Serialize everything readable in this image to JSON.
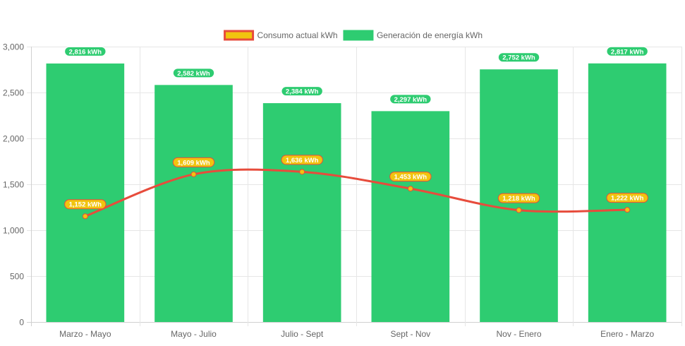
{
  "chart_data": {
    "type": "bar",
    "categories": [
      "Marzo - Mayo",
      "Mayo - Julio",
      "Julio - Sept",
      "Sept - Nov",
      "Nov - Enero",
      "Enero - Marzo"
    ],
    "series": [
      {
        "name": "Generación de energía kWh",
        "type": "bar",
        "color": "#2ecc71",
        "values": [
          2816,
          2582,
          2384,
          2297,
          2752,
          2817
        ],
        "labels": [
          "2,816 kWh",
          "2,582 kWh",
          "2,384 kWh",
          "2,297 kWh",
          "2,752 kWh",
          "2,817 kWh"
        ]
      },
      {
        "name": "Consumo actual kWh",
        "type": "line",
        "color": "#e74c3c",
        "fill_color": "#f1c40f",
        "values": [
          1152,
          1609,
          1636,
          1453,
          1218,
          1222
        ],
        "labels": [
          "1,152 kWh",
          "1,609 kWh",
          "1,636 kWh",
          "1,453 kWh",
          "1,218 kWh",
          "1,222 kWh"
        ]
      }
    ],
    "y_ticks": [
      0,
      500,
      1000,
      1500,
      2000,
      2500,
      3000
    ],
    "y_tick_labels": [
      "0",
      "500",
      "1,000",
      "1,500",
      "2,000",
      "2,500",
      "3,000"
    ],
    "ylim": [
      0,
      3000
    ],
    "grid": true,
    "legend_position": "top-center",
    "legend": [
      {
        "label": "Consumo actual kWh",
        "color": "#f1c40f",
        "border": "#e74c3c"
      },
      {
        "label": "Generación de energía kWh",
        "color": "#2ecc71",
        "border": "#2ecc71"
      }
    ],
    "title": "",
    "xlabel": "",
    "ylabel": ""
  }
}
